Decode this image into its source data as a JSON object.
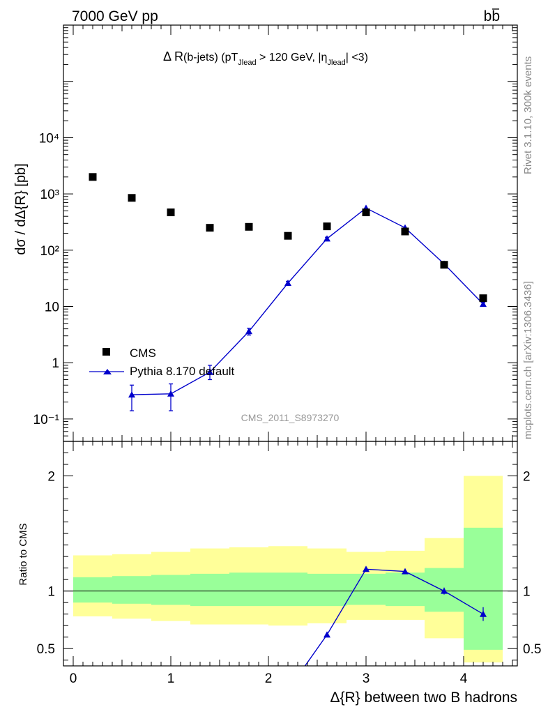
{
  "header": {
    "left_label": "7000 GeV pp",
    "right_label_main": "b",
    "right_label_bar": "b"
  },
  "side_labels": {
    "rivet": "Rivet 3.1.10,  300k events",
    "mcplots": "mcplots.cern.ch [arXiv:1306.3436]"
  },
  "title_parts": {
    "delta": "Δ R",
    "bjets": "(b-jets) (pT",
    "jlead1": "Jlead",
    "gt": " >  120 GeV, |η",
    "jlead2": "Jlead",
    "end": "| <3)"
  },
  "watermark": "CMS_2011_S8973270",
  "colors": {
    "data": "#000000",
    "mc": "#0000cc",
    "band_inner": "#99ff99",
    "band_outer": "#ffff99"
  },
  "chart_data": [
    {
      "type": "scatter",
      "panel": "main",
      "ylabel": "dσ / dΔ{R} [pb]",
      "yscale": "log",
      "ylim": [
        0.04,
        1000000
      ],
      "xlim": [
        -0.1,
        4.55
      ],
      "y_ticks": [
        "10⁻¹",
        "1",
        "10",
        "10²",
        "10³",
        "10⁴"
      ],
      "legend_position": "bottom-left",
      "series": [
        {
          "name": "CMS",
          "marker": "square",
          "x": [
            0.2,
            0.6,
            1.0,
            1.4,
            1.8,
            2.2,
            2.6,
            3.0,
            3.4,
            3.8,
            4.2
          ],
          "y": [
            2000,
            850,
            470,
            250,
            260,
            180,
            265,
            470,
            215,
            55,
            14
          ]
        },
        {
          "name": "Pythia 8.170 default",
          "marker": "triangle",
          "x": [
            0.6,
            1.0,
            1.4,
            1.8,
            2.2,
            2.6,
            3.0,
            3.4,
            3.8,
            4.2
          ],
          "y": [
            0.27,
            0.28,
            0.68,
            3.6,
            26,
            160,
            560,
            250,
            57,
            11
          ],
          "yerr_low": [
            0.13,
            0.14,
            0.18,
            0.5,
            2,
            10,
            20,
            10,
            3,
            0.8
          ],
          "yerr_high": [
            0.13,
            0.14,
            0.22,
            0.5,
            2,
            10,
            20,
            10,
            3,
            0.8
          ]
        }
      ]
    },
    {
      "type": "line",
      "panel": "ratio",
      "xlabel": "Δ{R} between two B hadrons",
      "ylabel": "Ratio to CMS",
      "ylim": [
        0.35,
        2.3
      ],
      "x_ticks": [
        "0",
        "1",
        "2",
        "3",
        "4"
      ],
      "y_ticks": [
        "0.5",
        "1",
        "2"
      ],
      "bands": {
        "edges": [
          0.0,
          0.4,
          0.8,
          1.2,
          1.6,
          2.0,
          2.4,
          2.8,
          3.2,
          3.6,
          4.0,
          4.4
        ],
        "inner_low": [
          0.9,
          0.89,
          0.88,
          0.87,
          0.87,
          0.87,
          0.87,
          0.88,
          0.87,
          0.82,
          0.49
        ],
        "inner_high": [
          1.12,
          1.13,
          1.14,
          1.15,
          1.16,
          1.16,
          1.15,
          1.15,
          1.16,
          1.2,
          1.55
        ],
        "outer_low": [
          0.78,
          0.76,
          0.74,
          0.71,
          0.71,
          0.7,
          0.72,
          0.75,
          0.75,
          0.59,
          0.38
        ],
        "outer_high": [
          1.31,
          1.32,
          1.34,
          1.37,
          1.38,
          1.39,
          1.37,
          1.34,
          1.35,
          1.46,
          2.0
        ]
      },
      "series": [
        {
          "name": "Pythia 8.170 default",
          "x": [
            2.2,
            2.6,
            3.0,
            3.4,
            3.8,
            4.2
          ],
          "y": [
            0.14,
            0.62,
            1.19,
            1.17,
            1.0,
            0.8
          ],
          "yerr": [
            0.0,
            0.0,
            0.0,
            0.0,
            0.03,
            0.06
          ]
        }
      ]
    }
  ]
}
